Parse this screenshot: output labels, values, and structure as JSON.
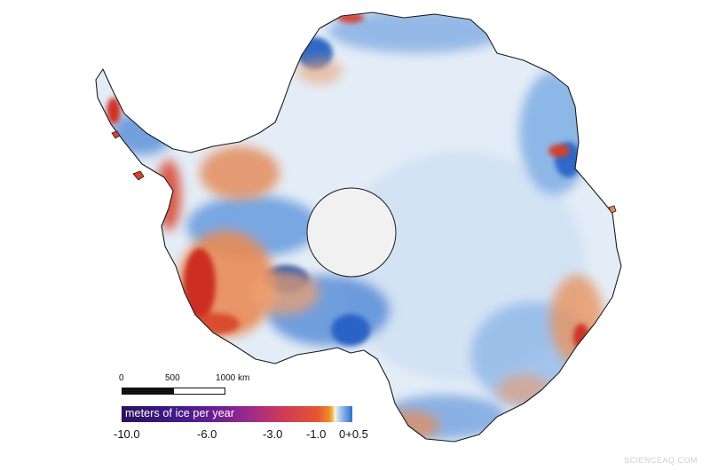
{
  "map": {
    "subject": "Antarctica ice thickness change",
    "colors": {
      "land_light": "#e3ecf6",
      "gain_blue": "#3a7fd6",
      "loss_red": "#d8402a",
      "loss_orange": "#e88a52",
      "pole_hole": "#f1f1f1",
      "coastline": "#1a1a1a"
    }
  },
  "scale_bar": {
    "labels": [
      "0",
      "500",
      "1000 km"
    ]
  },
  "legend": {
    "title": "meters of ice per year",
    "ticks": [
      "-10.0",
      "-6.0",
      "-3.0",
      "-1.0",
      "0",
      "+0.5"
    ]
  },
  "watermark": "SCIENCEAQ.COM"
}
